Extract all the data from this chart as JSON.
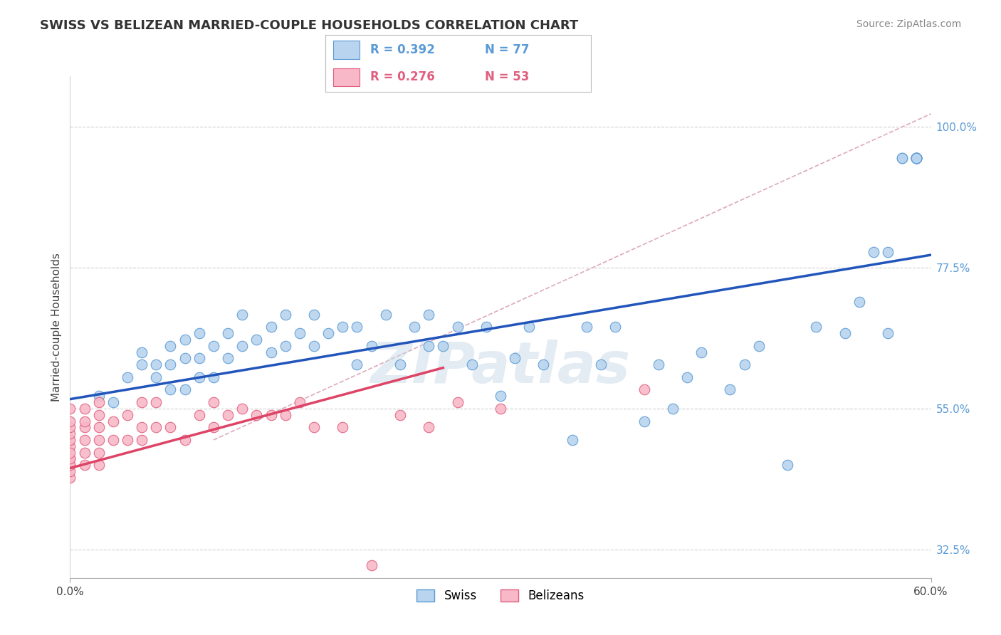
{
  "title": "SWISS VS BELIZEAN MARRIED-COUPLE HOUSEHOLDS CORRELATION CHART",
  "source": "Source: ZipAtlas.com",
  "ylabel": "Married-couple Households",
  "xlim": [
    0.0,
    0.6
  ],
  "ylim": [
    0.28,
    1.08
  ],
  "xtick_positions": [
    0.0,
    0.6
  ],
  "xtick_labels": [
    "0.0%",
    "60.0%"
  ],
  "ytick_values": [
    0.325,
    0.55,
    0.775,
    1.0
  ],
  "ytick_labels": [
    "32.5%",
    "55.0%",
    "77.5%",
    "100.0%"
  ],
  "grid_color": "#d0d0d0",
  "watermark": "ZIPatlas",
  "swiss_color": "#b8d4ee",
  "swiss_edge": "#5b9bd5",
  "belizean_color": "#f8b8c8",
  "belizean_edge": "#e06080",
  "swiss_R": 0.392,
  "swiss_N": 77,
  "belizean_R": 0.276,
  "belizean_N": 53,
  "swiss_line_color": "#2255bb",
  "belizean_line_color": "#dd4466",
  "swiss_line_x": [
    0.0,
    0.6
  ],
  "swiss_line_y": [
    0.565,
    0.795
  ],
  "belizean_line_x": [
    0.0,
    0.26
  ],
  "belizean_line_y": [
    0.455,
    0.615
  ],
  "ref_line_x": [
    0.1,
    0.6
  ],
  "ref_line_y": [
    0.5,
    1.02
  ],
  "swiss_scatter_x": [
    0.02,
    0.03,
    0.04,
    0.05,
    0.05,
    0.06,
    0.06,
    0.07,
    0.07,
    0.07,
    0.08,
    0.08,
    0.08,
    0.09,
    0.09,
    0.09,
    0.1,
    0.1,
    0.11,
    0.11,
    0.12,
    0.12,
    0.13,
    0.14,
    0.14,
    0.15,
    0.15,
    0.16,
    0.17,
    0.17,
    0.18,
    0.19,
    0.2,
    0.2,
    0.21,
    0.22,
    0.23,
    0.24,
    0.25,
    0.25,
    0.26,
    0.27,
    0.28,
    0.29,
    0.3,
    0.31,
    0.32,
    0.33,
    0.35,
    0.36,
    0.37,
    0.38,
    0.4,
    0.41,
    0.42,
    0.43,
    0.44,
    0.46,
    0.47,
    0.48,
    0.5,
    0.52,
    0.54,
    0.55,
    0.56,
    0.57,
    0.57,
    0.58,
    0.58,
    0.59,
    0.59,
    0.59,
    0.59,
    0.59,
    0.59,
    0.59,
    0.59
  ],
  "swiss_scatter_y": [
    0.57,
    0.56,
    0.6,
    0.62,
    0.64,
    0.6,
    0.62,
    0.58,
    0.62,
    0.65,
    0.58,
    0.63,
    0.66,
    0.6,
    0.63,
    0.67,
    0.6,
    0.65,
    0.63,
    0.67,
    0.65,
    0.7,
    0.66,
    0.64,
    0.68,
    0.65,
    0.7,
    0.67,
    0.65,
    0.7,
    0.67,
    0.68,
    0.62,
    0.68,
    0.65,
    0.7,
    0.62,
    0.68,
    0.65,
    0.7,
    0.65,
    0.68,
    0.62,
    0.68,
    0.57,
    0.63,
    0.68,
    0.62,
    0.5,
    0.68,
    0.62,
    0.68,
    0.53,
    0.62,
    0.55,
    0.6,
    0.64,
    0.58,
    0.62,
    0.65,
    0.46,
    0.68,
    0.67,
    0.72,
    0.8,
    0.67,
    0.8,
    0.95,
    0.95,
    0.95,
    0.95,
    0.95,
    0.95,
    0.95,
    0.95,
    0.95,
    0.95
  ],
  "belizean_scatter_x": [
    0.0,
    0.0,
    0.0,
    0.0,
    0.0,
    0.0,
    0.0,
    0.0,
    0.0,
    0.0,
    0.0,
    0.0,
    0.0,
    0.01,
    0.01,
    0.01,
    0.01,
    0.01,
    0.01,
    0.02,
    0.02,
    0.02,
    0.02,
    0.02,
    0.02,
    0.03,
    0.03,
    0.04,
    0.04,
    0.05,
    0.05,
    0.05,
    0.06,
    0.06,
    0.07,
    0.08,
    0.09,
    0.1,
    0.1,
    0.11,
    0.12,
    0.13,
    0.14,
    0.15,
    0.16,
    0.17,
    0.19,
    0.21,
    0.23,
    0.25,
    0.27,
    0.3,
    0.4
  ],
  "belizean_scatter_y": [
    0.44,
    0.46,
    0.47,
    0.49,
    0.5,
    0.51,
    0.52,
    0.53,
    0.55,
    0.45,
    0.46,
    0.47,
    0.48,
    0.46,
    0.48,
    0.5,
    0.52,
    0.53,
    0.55,
    0.46,
    0.48,
    0.5,
    0.52,
    0.54,
    0.56,
    0.5,
    0.53,
    0.5,
    0.54,
    0.5,
    0.52,
    0.56,
    0.52,
    0.56,
    0.52,
    0.5,
    0.54,
    0.52,
    0.56,
    0.54,
    0.55,
    0.54,
    0.54,
    0.54,
    0.56,
    0.52,
    0.52,
    0.3,
    0.54,
    0.52,
    0.56,
    0.55,
    0.58
  ]
}
